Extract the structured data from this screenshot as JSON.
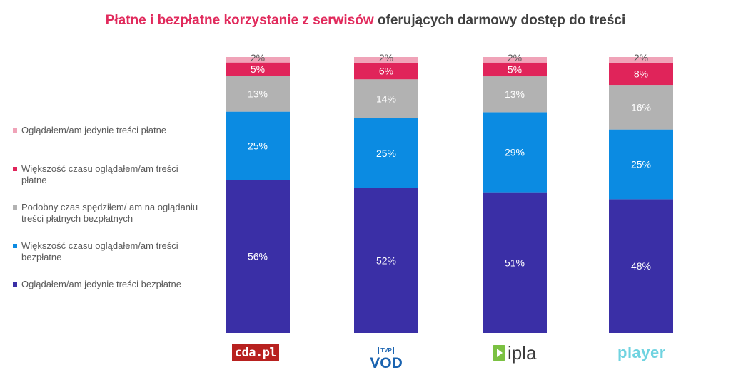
{
  "title": {
    "highlight": "Płatne i bezpłatne korzystanie z serwisów",
    "rest": "oferujących darmowy dostęp do treści"
  },
  "legend": [
    {
      "label": "Oglądałem/am jedynie treści płatne",
      "color": "#f0a3b8"
    },
    {
      "label": "Większość czasu oglądałem/am treści płatne",
      "color": "#e0245a"
    },
    {
      "label": "Podobny czas spędziłem/ am na oglądaniu treści płatnych bezpłatnych",
      "color": "#b2b2b2"
    },
    {
      "label": "Większość czasu oglądałem/am treści bezpłatne",
      "color": "#0b8be2"
    },
    {
      "label": "Oglądałem/am jedynie treści bezpłatne",
      "color": "#3a2fa6"
    }
  ],
  "logos": {
    "cda": "cda.pl",
    "tvp_top": "TVP",
    "tvp_main": "VOD",
    "ipla": "ipla",
    "player": "player"
  },
  "chart_data": {
    "type": "bar",
    "stacked": true,
    "normalized": true,
    "categories": [
      "cda.pl",
      "TVP VOD",
      "ipla",
      "player"
    ],
    "series": [
      {
        "name": "Oglądałem/am jedynie treści bezpłatne",
        "color": "#3a2fa6",
        "values": [
          56,
          52,
          51,
          48
        ],
        "labels": [
          "56%",
          "52%",
          "51%",
          "48%"
        ]
      },
      {
        "name": "Większość czasu oglądałem/am treści bezpłatne",
        "color": "#0b8be2",
        "values": [
          25,
          25,
          29,
          25
        ],
        "labels": [
          "25%",
          "25%",
          "29%",
          "25%"
        ]
      },
      {
        "name": "Podobny czas spędziłem/ am na oglądaniu treści płatnych bezpłatnych",
        "color": "#b2b2b2",
        "values": [
          13,
          14,
          13,
          16
        ],
        "labels": [
          "13%",
          "14%",
          "13%",
          "16%"
        ]
      },
      {
        "name": "Większość czasu oglądałem/am treści płatne",
        "color": "#e0245a",
        "values": [
          5,
          6,
          5,
          8
        ],
        "labels": [
          "5%",
          "6%",
          "5%",
          "8%"
        ]
      },
      {
        "name": "Oglądałem/am jedynie treści płatne",
        "color": "#f0a3b8",
        "values": [
          2,
          2,
          2,
          2
        ],
        "labels": [
          "2%",
          "2%",
          "2%",
          "2%"
        ]
      }
    ],
    "ylim": [
      0,
      100
    ],
    "grid": false,
    "legend_position": "left"
  }
}
